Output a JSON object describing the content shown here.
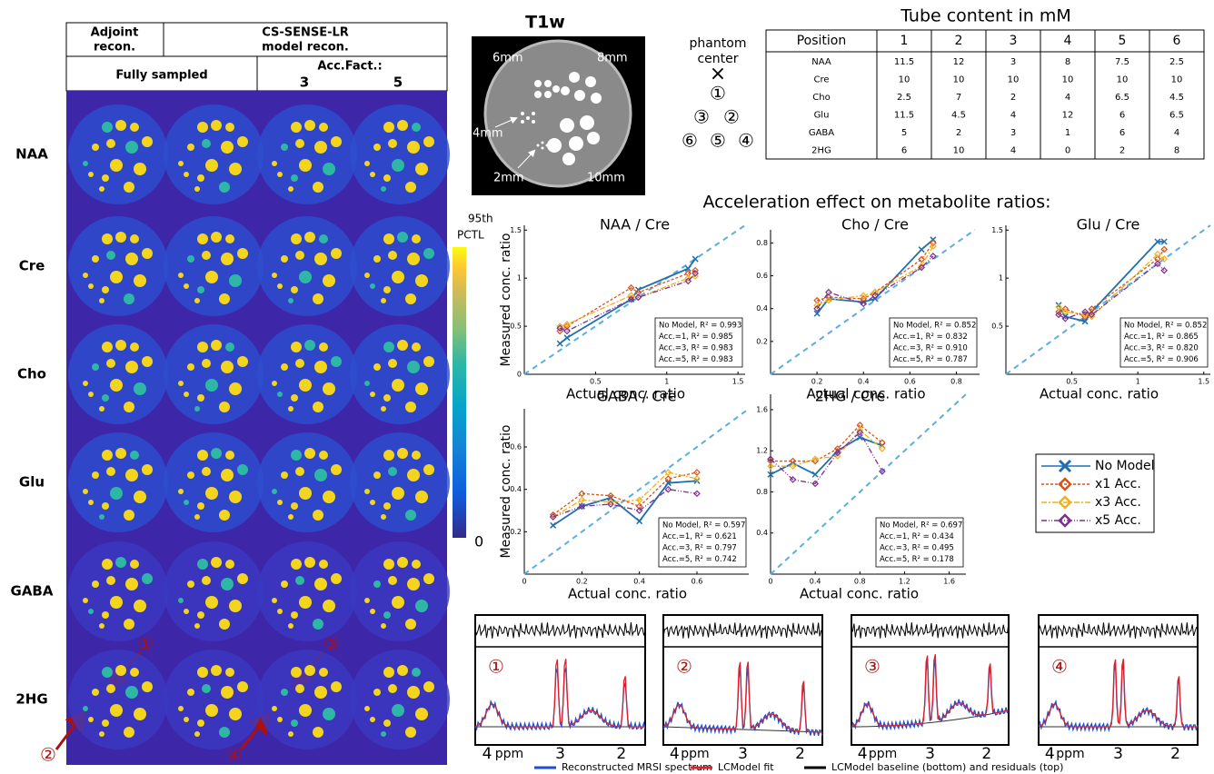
{
  "left_panel": {
    "header": {
      "adjoint": [
        "Adjoint",
        "recon."
      ],
      "model": [
        "CS-SENSE-LR",
        "model recon."
      ],
      "fully": "Fully sampled",
      "acc": "Acc.Fact.:",
      "acc_values": [
        "3",
        "5"
      ]
    },
    "rows": [
      "NAA",
      "Cre",
      "Cho",
      "Glu",
      "GABA",
      "2HG"
    ],
    "colorbar": {
      "top": "95th",
      "unit": "PCTL",
      "bottom": "0"
    },
    "arrows": [
      "①",
      "②",
      "③",
      "④"
    ]
  },
  "t1w": {
    "title": "T1w",
    "labels": [
      "6mm",
      "8mm",
      "4mm",
      "2mm",
      "10mm"
    ]
  },
  "phantom": {
    "label": [
      "phantom",
      "center"
    ],
    "center": "×",
    "tubes": [
      "①",
      "③",
      "②",
      "⑥",
      "⑤",
      "④"
    ]
  },
  "table": {
    "title": "Tube content in mM",
    "header": [
      "Position",
      "1",
      "2",
      "3",
      "4",
      "5",
      "6"
    ],
    "rows": [
      [
        "NAA",
        "11.5",
        "12",
        "3",
        "8",
        "7.5",
        "2.5"
      ],
      [
        "Cre",
        "10",
        "10",
        "10",
        "10",
        "10",
        "10"
      ],
      [
        "Cho",
        "2.5",
        "7",
        "2",
        "4",
        "6.5",
        "4.5"
      ],
      [
        "Glu",
        "11.5",
        "4.5",
        "4",
        "12",
        "6",
        "6.5"
      ],
      [
        "GABA",
        "5",
        "2",
        "3",
        "1",
        "6",
        "4"
      ],
      [
        "2HG",
        "6",
        "10",
        "4",
        "0",
        "2",
        "8"
      ]
    ]
  },
  "section_title": "Acceleration effect on metabolite ratios:",
  "chart_data": [
    {
      "type": "line",
      "title": "NAA / Cre",
      "xlabel": "Actual conc. ratio",
      "ylabel": "Measured conc. ratio",
      "x": [
        0.25,
        0.3,
        0.75,
        0.8,
        1.15,
        1.2
      ],
      "xlim": [
        0,
        1.55
      ],
      "ylim": [
        0,
        1.55
      ],
      "xticks": [
        0.5,
        1,
        1.5
      ],
      "yticks": [
        0,
        0.5,
        1,
        1.5
      ],
      "series": [
        {
          "name": "No Model",
          "color": "#1f6fb0",
          "values": [
            0.32,
            0.38,
            0.78,
            0.88,
            1.1,
            1.2
          ]
        },
        {
          "name": "x1 Acc.",
          "color": "#d95319",
          "values": [
            0.45,
            0.5,
            0.9,
            0.85,
            1.05,
            1.08
          ]
        },
        {
          "name": "x3 Acc.",
          "color": "#edb120",
          "values": [
            0.5,
            0.52,
            0.82,
            0.8,
            1.0,
            1.02
          ]
        },
        {
          "name": "x5 Acc.",
          "color": "#7e2f8e",
          "values": [
            0.48,
            0.45,
            0.78,
            0.8,
            0.97,
            1.05
          ]
        }
      ],
      "annotations": [
        "No Model, R² = 0.993",
        "Acc.=1, R² = 0.985",
        "Acc.=3, R² = 0.983",
        "Acc.=5, R² = 0.983"
      ]
    },
    {
      "type": "line",
      "title": "Cho / Cre",
      "xlabel": "Actual conc. ratio",
      "x": [
        0.2,
        0.25,
        0.4,
        0.45,
        0.65,
        0.7
      ],
      "xlim": [
        0,
        0.9
      ],
      "ylim": [
        0,
        0.88
      ],
      "xticks": [
        0.2,
        0.4,
        0.6,
        0.8
      ],
      "yticks": [
        0.2,
        0.4,
        0.6,
        0.8
      ],
      "series": [
        {
          "name": "No Model",
          "color": "#1f6fb0",
          "values": [
            0.37,
            0.46,
            0.44,
            0.46,
            0.76,
            0.82
          ]
        },
        {
          "name": "x1 Acc.",
          "color": "#d95319",
          "values": [
            0.45,
            0.47,
            0.46,
            0.5,
            0.7,
            0.8
          ]
        },
        {
          "name": "x3 Acc.",
          "color": "#edb120",
          "values": [
            0.42,
            0.45,
            0.48,
            0.5,
            0.66,
            0.78
          ]
        },
        {
          "name": "x5 Acc.",
          "color": "#7e2f8e",
          "values": [
            0.4,
            0.5,
            0.43,
            0.48,
            0.65,
            0.72
          ]
        }
      ],
      "annotations": [
        "No Model, R² = 0.852",
        "Acc.=1, R² = 0.832",
        "Acc.=3, R² = 0.910",
        "Acc.=5, R² = 0.787"
      ]
    },
    {
      "type": "line",
      "title": "Glu / Cre",
      "xlabel": "Actual conc. ratio",
      "x": [
        0.4,
        0.45,
        0.6,
        0.65,
        1.15,
        1.2
      ],
      "xlim": [
        0,
        1.55
      ],
      "ylim": [
        0,
        1.55
      ],
      "xticks": [
        0.5,
        1,
        1.5
      ],
      "yticks": [
        0.5,
        1,
        1.5
      ],
      "series": [
        {
          "name": "No Model",
          "color": "#1f6fb0",
          "values": [
            0.72,
            0.6,
            0.55,
            0.65,
            1.38,
            1.38
          ]
        },
        {
          "name": "x1 Acc.",
          "color": "#d95319",
          "values": [
            0.65,
            0.68,
            0.6,
            0.68,
            1.2,
            1.3
          ]
        },
        {
          "name": "x3 Acc.",
          "color": "#edb120",
          "values": [
            0.7,
            0.65,
            0.62,
            0.6,
            1.25,
            1.2
          ]
        },
        {
          "name": "x5 Acc.",
          "color": "#7e2f8e",
          "values": [
            0.62,
            0.58,
            0.65,
            0.62,
            1.15,
            1.08
          ]
        }
      ],
      "annotations": [
        "No Model, R² = 0.852",
        "Acc.=1, R² = 0.865",
        "Acc.=3, R² = 0.820",
        "Acc.=5, R² = 0.906"
      ]
    },
    {
      "type": "line",
      "title": "GABA / Cre",
      "xlabel": "Actual conc. ratio",
      "ylabel": "Measured conc. ratio",
      "x": [
        0.1,
        0.2,
        0.3,
        0.4,
        0.5,
        0.6
      ],
      "xlim": [
        0,
        0.78
      ],
      "ylim": [
        0,
        0.78
      ],
      "xticks": [
        0,
        0.2,
        0.4,
        0.6
      ],
      "yticks": [
        0.2,
        0.4,
        0.6
      ],
      "series": [
        {
          "name": "No Model",
          "color": "#1f6fb0",
          "values": [
            0.23,
            0.32,
            0.36,
            0.25,
            0.43,
            0.44
          ]
        },
        {
          "name": "x1 Acc.",
          "color": "#d95319",
          "values": [
            0.28,
            0.38,
            0.37,
            0.32,
            0.45,
            0.48
          ]
        },
        {
          "name": "x3 Acc.",
          "color": "#edb120",
          "values": [
            0.27,
            0.35,
            0.34,
            0.35,
            0.48,
            0.45
          ]
        },
        {
          "name": "x5 Acc.",
          "color": "#7e2f8e",
          "values": [
            0.27,
            0.32,
            0.33,
            0.3,
            0.4,
            0.38
          ]
        }
      ],
      "annotations": [
        "No Model, R² = 0.597",
        "Acc.=1, R² = 0.621",
        "Acc.=3, R² = 0.797",
        "Acc.=5, R² = 0.742"
      ]
    },
    {
      "type": "line",
      "title": "2HG / Cre",
      "xlabel": "Actual conc. ratio",
      "x": [
        0,
        0.2,
        0.4,
        0.6,
        0.8,
        1.0
      ],
      "xlim": [
        0,
        1.75
      ],
      "ylim": [
        0,
        1.75
      ],
      "xticks": [
        0,
        0.4,
        0.8,
        1.2,
        1.6
      ],
      "yticks": [
        0.4,
        0.8,
        1.2,
        1.6
      ],
      "series": [
        {
          "name": "No Model",
          "color": "#1f6fb0",
          "values": [
            0.97,
            1.08,
            0.97,
            1.2,
            1.33,
            1.25
          ]
        },
        {
          "name": "x1 Acc.",
          "color": "#d95319",
          "values": [
            1.1,
            1.1,
            1.1,
            1.22,
            1.45,
            1.28
          ]
        },
        {
          "name": "x3 Acc.",
          "color": "#edb120",
          "values": [
            1.05,
            1.05,
            1.12,
            1.15,
            1.4,
            1.22
          ]
        },
        {
          "name": "x5 Acc.",
          "color": "#7e2f8e",
          "values": [
            1.12,
            0.92,
            0.88,
            1.18,
            1.38,
            1.0
          ]
        }
      ],
      "annotations": [
        "No Model, R² = 0.697",
        "Acc.=1, R² = 0.434",
        "Acc.=3, R² = 0.495",
        "Acc.=5, R² = 0.178"
      ]
    }
  ],
  "spectra": {
    "panels": [
      "①",
      "②",
      "③",
      "④"
    ],
    "axis": [
      "4",
      "ppm",
      "3",
      "2"
    ],
    "key": [
      "Reconstructed MRSI spectrum",
      "LCModel fit",
      "LCModel baseline (bottom) and residuals (top)"
    ]
  }
}
